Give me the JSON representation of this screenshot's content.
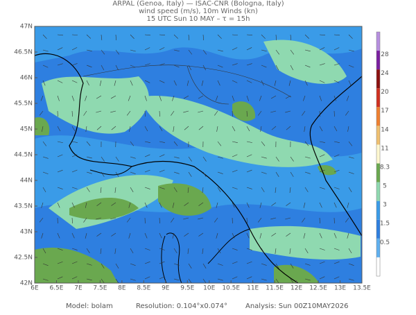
{
  "header": {
    "line1": "ARPAL (Genoa, Italy)  —  ISAC-CNR (Bologna, Italy)",
    "line2": "wind speed (m/s), 10m Winds (kn)",
    "line3": "15 UTC Sun 10 MAY  –  τ = 15h"
  },
  "map": {
    "lat_labels": [
      "47N",
      "46.5N",
      "46N",
      "45.5N",
      "45N",
      "44.5N",
      "44N",
      "43.5N",
      "43N",
      "42.5N",
      "42N"
    ],
    "lon_labels": [
      "6E",
      "6.5E",
      "7E",
      "7.5E",
      "8E",
      "8.5E",
      "9E",
      "9.5E",
      "10E",
      "10.5E",
      "11E",
      "11.5E",
      "12E",
      "12.5E",
      "13E",
      "13.5E"
    ]
  },
  "colorbar": {
    "labels": [
      "28",
      "24",
      "20",
      "17",
      "14",
      "11",
      "8.3",
      "5",
      "3",
      "1.5",
      "0.5"
    ]
  },
  "footer": {
    "model": "Model: bolam",
    "resolution": "Resolution: 0.104°x0.074°",
    "analysis": "Analysis: Sun 00Z10MAY2026"
  }
}
